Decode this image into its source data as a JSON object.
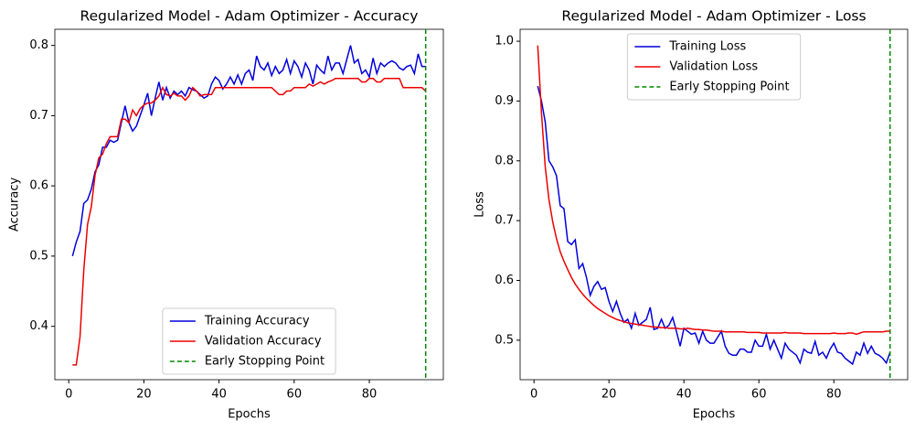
{
  "chart_data": [
    {
      "type": "line",
      "title": "Regularized Model - Adam Optimizer - Accuracy",
      "xlabel": "Epochs",
      "ylabel": "Accuracy",
      "x": [
        1,
        2,
        3,
        4,
        5,
        6,
        7,
        8,
        9,
        10,
        11,
        12,
        13,
        14,
        15,
        16,
        17,
        18,
        19,
        20,
        21,
        22,
        23,
        24,
        25,
        26,
        27,
        28,
        29,
        30,
        31,
        32,
        33,
        34,
        35,
        36,
        37,
        38,
        39,
        40,
        41,
        42,
        43,
        44,
        45,
        46,
        47,
        48,
        49,
        50,
        51,
        52,
        53,
        54,
        55,
        56,
        57,
        58,
        59,
        60,
        61,
        62,
        63,
        64,
        65,
        66,
        67,
        68,
        69,
        70,
        71,
        72,
        73,
        74,
        75,
        76,
        77,
        78,
        79,
        80,
        81,
        82,
        83,
        84,
        85,
        86,
        87,
        88,
        89,
        90,
        91,
        92,
        93,
        94,
        95
      ],
      "series": [
        {
          "name": "Training Accuracy",
          "color": "#0000dd",
          "values": [
            0.5,
            0.52,
            0.535,
            0.575,
            0.58,
            0.595,
            0.62,
            0.63,
            0.655,
            0.655,
            0.665,
            0.662,
            0.665,
            0.69,
            0.714,
            0.69,
            0.678,
            0.685,
            0.7,
            0.715,
            0.732,
            0.7,
            0.725,
            0.748,
            0.722,
            0.74,
            0.725,
            0.735,
            0.73,
            0.735,
            0.728,
            0.74,
            0.737,
            0.735,
            0.73,
            0.725,
            0.728,
            0.745,
            0.755,
            0.75,
            0.738,
            0.745,
            0.755,
            0.745,
            0.758,
            0.745,
            0.76,
            0.765,
            0.75,
            0.785,
            0.77,
            0.765,
            0.775,
            0.757,
            0.77,
            0.76,
            0.765,
            0.78,
            0.76,
            0.778,
            0.77,
            0.755,
            0.775,
            0.765,
            0.745,
            0.772,
            0.765,
            0.76,
            0.785,
            0.765,
            0.775,
            0.775,
            0.76,
            0.78,
            0.8,
            0.775,
            0.78,
            0.76,
            0.765,
            0.755,
            0.782,
            0.76,
            0.775,
            0.77,
            0.775,
            0.778,
            0.775,
            0.768,
            0.765,
            0.77,
            0.772,
            0.76,
            0.788,
            0.77,
            0.77
          ]
        },
        {
          "name": "Validation Accuracy",
          "color": "#ee0000",
          "values": [
            0.345,
            0.345,
            0.385,
            0.48,
            0.545,
            0.57,
            0.615,
            0.64,
            0.645,
            0.66,
            0.67,
            0.67,
            0.67,
            0.695,
            0.695,
            0.69,
            0.708,
            0.7,
            0.71,
            0.715,
            0.718,
            0.718,
            0.722,
            0.728,
            0.74,
            0.73,
            0.728,
            0.732,
            0.728,
            0.728,
            0.722,
            0.728,
            0.74,
            0.735,
            0.728,
            0.73,
            0.73,
            0.73,
            0.74,
            0.74,
            0.74,
            0.74,
            0.74,
            0.74,
            0.74,
            0.74,
            0.74,
            0.74,
            0.74,
            0.74,
            0.74,
            0.74,
            0.74,
            0.74,
            0.735,
            0.73,
            0.73,
            0.735,
            0.735,
            0.74,
            0.74,
            0.74,
            0.74,
            0.745,
            0.742,
            0.745,
            0.748,
            0.745,
            0.748,
            0.75,
            0.753,
            0.753,
            0.753,
            0.753,
            0.753,
            0.753,
            0.753,
            0.748,
            0.748,
            0.753,
            0.753,
            0.748,
            0.748,
            0.753,
            0.753,
            0.753,
            0.753,
            0.753,
            0.74,
            0.74,
            0.74,
            0.74,
            0.74,
            0.74,
            0.735
          ]
        }
      ],
      "vline": {
        "name": "Early Stopping Point",
        "x": 95,
        "color": "#008800"
      },
      "xlim": [
        -3.7,
        99.7
      ],
      "xticks": [
        0,
        20,
        40,
        60,
        80
      ],
      "ylim": [
        0.324,
        0.823
      ],
      "yticks": [
        0.4,
        0.5,
        0.6,
        0.7,
        0.8
      ],
      "legend": "lower center"
    },
    {
      "type": "line",
      "title": "Regularized Model - Adam Optimizer - Loss",
      "xlabel": "Epochs",
      "ylabel": "Loss",
      "x": [
        1,
        2,
        3,
        4,
        5,
        6,
        7,
        8,
        9,
        10,
        11,
        12,
        13,
        14,
        15,
        16,
        17,
        18,
        19,
        20,
        21,
        22,
        23,
        24,
        25,
        26,
        27,
        28,
        29,
        30,
        31,
        32,
        33,
        34,
        35,
        36,
        37,
        38,
        39,
        40,
        41,
        42,
        43,
        44,
        45,
        46,
        47,
        48,
        49,
        50,
        51,
        52,
        53,
        54,
        55,
        56,
        57,
        58,
        59,
        60,
        61,
        62,
        63,
        64,
        65,
        66,
        67,
        68,
        69,
        70,
        71,
        72,
        73,
        74,
        75,
        76,
        77,
        78,
        79,
        80,
        81,
        82,
        83,
        84,
        85,
        86,
        87,
        88,
        89,
        90,
        91,
        92,
        93,
        94,
        95
      ],
      "series": [
        {
          "name": "Training Loss",
          "color": "#0000dd",
          "values": [
            0.925,
            0.9,
            0.865,
            0.8,
            0.79,
            0.775,
            0.725,
            0.72,
            0.665,
            0.66,
            0.668,
            0.62,
            0.628,
            0.605,
            0.575,
            0.59,
            0.598,
            0.585,
            0.588,
            0.565,
            0.548,
            0.565,
            0.545,
            0.53,
            0.535,
            0.52,
            0.545,
            0.525,
            0.53,
            0.535,
            0.555,
            0.518,
            0.52,
            0.535,
            0.52,
            0.525,
            0.538,
            0.515,
            0.49,
            0.52,
            0.515,
            0.51,
            0.512,
            0.495,
            0.515,
            0.5,
            0.495,
            0.495,
            0.505,
            0.515,
            0.49,
            0.478,
            0.475,
            0.475,
            0.485,
            0.485,
            0.48,
            0.48,
            0.5,
            0.49,
            0.49,
            0.51,
            0.485,
            0.5,
            0.485,
            0.47,
            0.495,
            0.485,
            0.48,
            0.475,
            0.462,
            0.485,
            0.48,
            0.478,
            0.498,
            0.475,
            0.48,
            0.47,
            0.485,
            0.495,
            0.48,
            0.478,
            0.47,
            0.465,
            0.46,
            0.48,
            0.475,
            0.495,
            0.478,
            0.49,
            0.478,
            0.475,
            0.47,
            0.462,
            0.48
          ]
        },
        {
          "name": "Validation Loss",
          "color": "#ee0000",
          "values": [
            0.993,
            0.88,
            0.79,
            0.735,
            0.698,
            0.67,
            0.648,
            0.632,
            0.618,
            0.605,
            0.594,
            0.585,
            0.577,
            0.57,
            0.564,
            0.558,
            0.553,
            0.549,
            0.545,
            0.541,
            0.538,
            0.535,
            0.533,
            0.531,
            0.529,
            0.528,
            0.527,
            0.526,
            0.525,
            0.524,
            0.523,
            0.522,
            0.522,
            0.521,
            0.521,
            0.52,
            0.52,
            0.52,
            0.519,
            0.519,
            0.52,
            0.519,
            0.518,
            0.518,
            0.517,
            0.517,
            0.516,
            0.515,
            0.515,
            0.515,
            0.514,
            0.514,
            0.514,
            0.514,
            0.514,
            0.514,
            0.513,
            0.513,
            0.513,
            0.513,
            0.512,
            0.512,
            0.512,
            0.512,
            0.512,
            0.512,
            0.513,
            0.512,
            0.512,
            0.512,
            0.512,
            0.511,
            0.511,
            0.511,
            0.511,
            0.511,
            0.511,
            0.511,
            0.511,
            0.512,
            0.511,
            0.511,
            0.511,
            0.512,
            0.512,
            0.51,
            0.512,
            0.514,
            0.514,
            0.514,
            0.514,
            0.514,
            0.514,
            0.515,
            0.515
          ]
        }
      ],
      "vline": {
        "name": "Early Stopping Point",
        "x": 95,
        "color": "#008800"
      },
      "xlim": [
        -3.7,
        99.7
      ],
      "xticks": [
        0,
        20,
        40,
        60,
        80
      ],
      "ylim": [
        0.434,
        1.02
      ],
      "yticks": [
        0.5,
        0.6,
        0.7,
        0.8,
        0.9,
        {
          "value": 1.0,
          "label": "1.0"
        }
      ],
      "legend": "upper center"
    }
  ]
}
